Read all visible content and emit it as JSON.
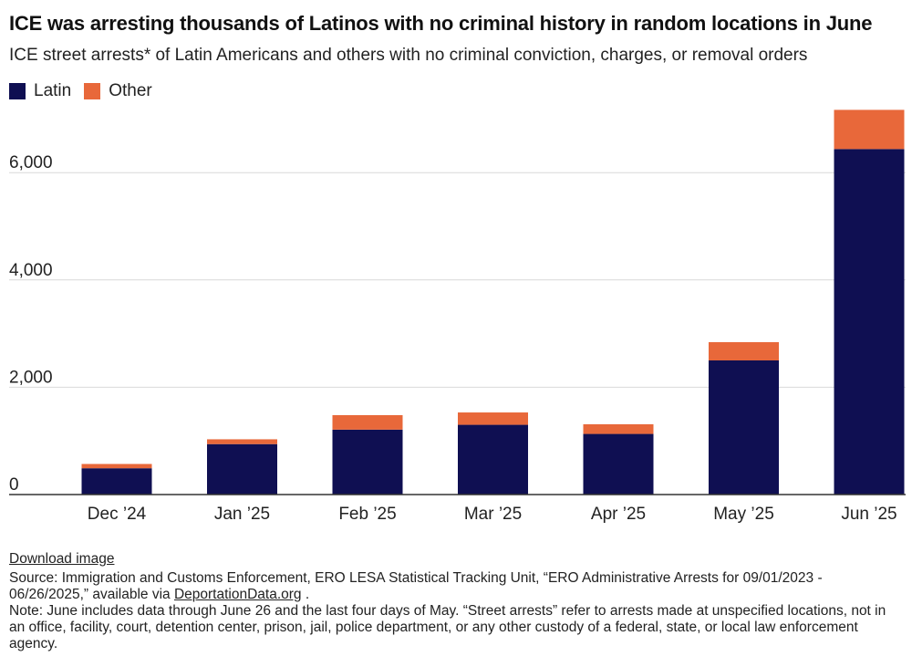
{
  "title": "ICE was arresting thousands of Latinos with no criminal history in random locations in June",
  "subtitle": "ICE street arrests* of Latin Americans and others with no criminal conviction, charges, or removal orders",
  "colors": {
    "latin": "#0f0f52",
    "other": "#e8683a",
    "grid": "#d9d9d9",
    "axis": "#333333"
  },
  "chart_data": {
    "type": "bar",
    "stacked": true,
    "categories": [
      "Dec '24",
      "Jan '25",
      "Feb '25",
      "Mar '25",
      "Apr '25",
      "May '25",
      "Jun '25"
    ],
    "category_labels": [
      "Dec ’24",
      "Jan ’25",
      "Feb ’25",
      "Mar ’25",
      "Apr ’25",
      "May ’25",
      "Jun ’25"
    ],
    "series": [
      {
        "name": "Latin",
        "values": [
          490,
          940,
          1210,
          1300,
          1130,
          2500,
          6440
        ]
      },
      {
        "name": "Other",
        "values": [
          80,
          90,
          270,
          230,
          180,
          340,
          730
        ]
      }
    ],
    "yticks": [
      0,
      2000,
      4000,
      6000
    ],
    "ytick_labels": [
      "0",
      "2,000",
      "4,000",
      "6,000"
    ],
    "ylim": [
      0,
      7200
    ],
    "grid": true,
    "legend": "top-left"
  },
  "footer": {
    "download": "Download image",
    "source_prefix": "Source: Immigration and Customs Enforcement, ERO LESA Statistical Tracking Unit, “ERO Administrative Arrests for 09/01/2023 - 06/26/2025,” available via ",
    "source_link": "DeportationData.org",
    "source_suffix": " .",
    "note": "Note: June includes data through June 26 and the last four days of May. “Street arrests” refer to arrests made at unspecified locations, not in an office, facility, court, detention center, prison, jail, police department, or any other custody of a federal, state, or local law enforcement agency."
  }
}
